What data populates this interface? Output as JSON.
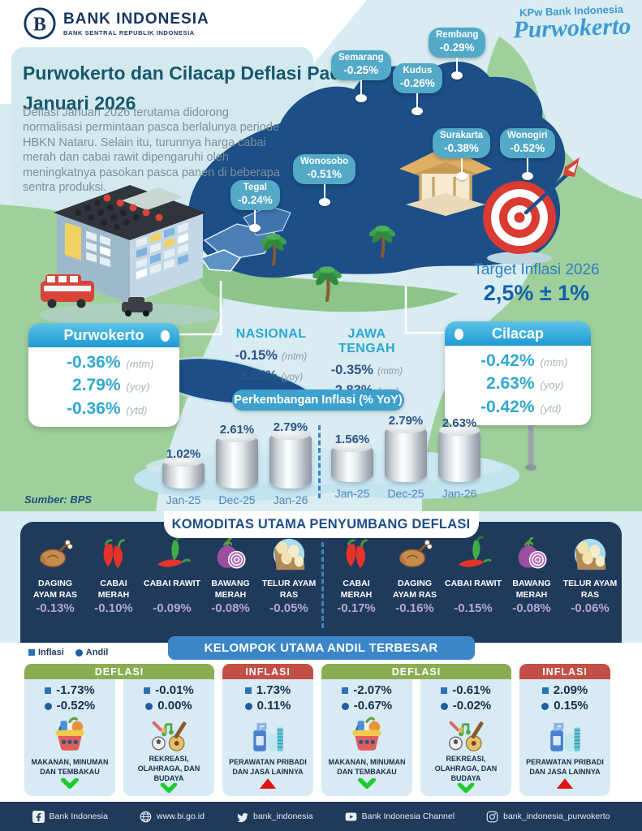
{
  "header": {
    "logo_title": "BANK INDONESIA",
    "logo_subtitle": "BANK SENTRAL REPUBLIK INDONESIA",
    "kpw_line1": "KPw Bank Indonesia",
    "kpw_line2": "Purwokerto"
  },
  "intro": {
    "title_line1": "Purwokerto dan Cilacap Deflasi Pada",
    "title_line2": "Januari 2026",
    "description": "Deflasi Januari 2026 terutama didorong normalisasi permintaan pasca berlalunya periode HBKN Nataru. Selain itu, turunnya harga cabai merah dan cabai rawit dipengaruhi oleh meningkatnya pasokan pasca panen di beberapa sentra produksi."
  },
  "map_labels": [
    {
      "city": "Tegal",
      "value": "-0.24%"
    },
    {
      "city": "Wonosobo",
      "value": "-0.51%"
    },
    {
      "city": "Semarang",
      "value": "-0.25%"
    },
    {
      "city": "Kudus",
      "value": "-0.26%"
    },
    {
      "city": "Rembang",
      "value": "-0.29%"
    },
    {
      "city": "Surakarta",
      "value": "-0.38%"
    },
    {
      "city": "Wonogiri",
      "value": "-0.52%"
    }
  ],
  "target": {
    "label": "Target Inflasi 2026",
    "value": "2,5% ± 1%"
  },
  "unit_labels": {
    "mtm": "(mtm)",
    "yoy": "(yoy)",
    "ytd": "(ytd)"
  },
  "regions": {
    "purwokerto": {
      "name": "Purwokerto",
      "mtm": "-0.36%",
      "yoy": "2.79%",
      "ytd": "-0.36%"
    },
    "nasional": {
      "name": "NASIONAL",
      "mtm": "-0.15%",
      "yoy": "3.55%"
    },
    "jawa_tengah": {
      "name": "JAWA TENGAH",
      "mtm": "-0.35%",
      "yoy": "2.83%"
    },
    "cilacap": {
      "name": "Cilacap",
      "mtm": "-0.42%",
      "yoy": "2.63%",
      "ytd": "-0.42%"
    }
  },
  "chart_header": "Perkembangan Inflasi (% YoY)",
  "chart_data": [
    {
      "type": "bar",
      "region": "Purwokerto",
      "title": "Perkembangan Inflasi (% YoY) - Purwokerto",
      "categories": [
        "Jan-25",
        "Dec-25",
        "Jan-26"
      ],
      "values": [
        1.02,
        2.61,
        2.79
      ],
      "unit": "%",
      "ylim": [
        0,
        3
      ],
      "grid": false,
      "legend": "none"
    },
    {
      "type": "bar",
      "region": "Cilacap",
      "title": "Perkembangan Inflasi (% YoY) - Cilacap",
      "categories": [
        "Jan-25",
        "Dec-25",
        "Jan-26"
      ],
      "values": [
        1.56,
        2.79,
        2.63
      ],
      "unit": "%",
      "ylim": [
        0,
        3
      ],
      "grid": false,
      "legend": "none"
    }
  ],
  "source": "Sumber: BPS",
  "komoditas": {
    "title": "KOMODITAS UTAMA PENYUMBANG DEFLASI",
    "purwokerto": [
      {
        "name": "DAGING AYAM RAS",
        "value": "-0.13%",
        "icon": "chicken-icon"
      },
      {
        "name": "CABAI MERAH",
        "value": "-0.10%",
        "icon": "red-chili-icon"
      },
      {
        "name": "CABAI RAWIT",
        "value": "-0.09%",
        "icon": "chili-rawit-icon"
      },
      {
        "name": "BAWANG MERAH",
        "value": "-0.08%",
        "icon": "onion-icon"
      },
      {
        "name": "TELUR AYAM RAS",
        "value": "-0.05%",
        "icon": "eggs-icon"
      }
    ],
    "cilacap": [
      {
        "name": "CABAI MERAH",
        "value": "-0.17%",
        "icon": "red-chili-icon"
      },
      {
        "name": "DAGING AYAM RAS",
        "value": "-0.16%",
        "icon": "chicken-icon"
      },
      {
        "name": "CABAI RAWIT",
        "value": "-0.15%",
        "icon": "chili-rawit-icon"
      },
      {
        "name": "BAWANG MERAH",
        "value": "-0.08%",
        "icon": "onion-icon"
      },
      {
        "name": "TELUR AYAM RAS",
        "value": "-0.06%",
        "icon": "eggs-icon"
      }
    ]
  },
  "kelompok": {
    "title": "KELOMPOK UTAMA ANDIL TERBESAR",
    "legend": {
      "inflasi": "Inflasi",
      "andil": "Andil"
    },
    "groups": [
      {
        "label": "DEFLASI",
        "type": "deflasi",
        "cards": [
          {
            "inflasi": "-1.73%",
            "andil": "-0.52%",
            "label": "MAKANAN, MINUMAN DAN TEMBAKAU",
            "icon": "basket-icon",
            "trend": "down"
          },
          {
            "inflasi": "-0.01%",
            "andil": "0.00%",
            "label": "REKREASI, OLAHRAGA, DAN BUDAYA",
            "icon": "recreation-icon",
            "trend": "down"
          }
        ]
      },
      {
        "label": "INFLASI",
        "type": "inflasi",
        "cards": [
          {
            "inflasi": "1.73%",
            "andil": "0.11%",
            "label": "PERAWATAN PRIBADI DAN JASA LAINNYA",
            "icon": "personal-care-icon",
            "trend": "up"
          }
        ]
      },
      {
        "label": "DEFLASI",
        "type": "deflasi",
        "cards": [
          {
            "inflasi": "-2.07%",
            "andil": "-0.67%",
            "label": "MAKANAN, MINUMAN DAN TEMBAKAU",
            "icon": "basket-icon",
            "trend": "down"
          },
          {
            "inflasi": "-0.61%",
            "andil": "-0.02%",
            "label": "REKREASI, OLAHRAGA, DAN BUDAYA",
            "icon": "recreation-icon",
            "trend": "down"
          }
        ]
      },
      {
        "label": "INFLASI",
        "type": "inflasi",
        "cards": [
          {
            "inflasi": "2.09%",
            "andil": "0.15%",
            "label": "PERAWATAN PRIBADI DAN JASA LAINNYA",
            "icon": "personal-care-icon",
            "trend": "up"
          }
        ]
      }
    ]
  },
  "footer": {
    "items": [
      {
        "icon": "facebook-icon",
        "label": "Bank Indonesia"
      },
      {
        "icon": "globe-icon",
        "label": "www.bi.go.id"
      },
      {
        "icon": "twitter-icon",
        "label": "bank_indonesia"
      },
      {
        "icon": "youtube-icon",
        "label": "Bank Indonesia Channel"
      },
      {
        "icon": "instagram-icon",
        "label": "bank_indonesia_purwokerto"
      }
    ]
  },
  "colors": {
    "accent_cyan": "#31a9cf",
    "navy": "#203a5c",
    "map_navy": "#1c4e87",
    "pill_teal": "#53a9c8",
    "green_header": "#8aad53",
    "red_header": "#c34f46",
    "blue_header": "#3a86c8",
    "lavender_value": "#b5a6d6"
  }
}
